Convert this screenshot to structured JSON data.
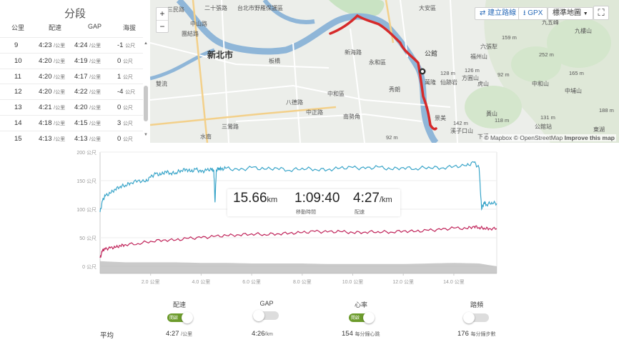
{
  "splits": {
    "title": "分段",
    "headers": [
      "公里",
      "配速",
      "GAP",
      "海拔"
    ],
    "rows": [
      {
        "km": "9",
        "pace": "4:23",
        "gap": "4:24",
        "elev": "-1",
        "pace_unit": "/公里",
        "elev_unit": "公尺"
      },
      {
        "km": "10",
        "pace": "4:20",
        "gap": "4:19",
        "elev": "0",
        "pace_unit": "/公里",
        "elev_unit": "公尺"
      },
      {
        "km": "11",
        "pace": "4:20",
        "gap": "4:17",
        "elev": "1",
        "pace_unit": "/公里",
        "elev_unit": "公尺"
      },
      {
        "km": "12",
        "pace": "4:20",
        "gap": "4:22",
        "elev": "-4",
        "pace_unit": "/公里",
        "elev_unit": "公尺"
      },
      {
        "km": "13",
        "pace": "4:21",
        "gap": "4:20",
        "elev": "0",
        "pace_unit": "/公里",
        "elev_unit": "公尺"
      },
      {
        "km": "14",
        "pace": "4:18",
        "gap": "4:15",
        "elev": "3",
        "pace_unit": "/公里",
        "elev_unit": "公尺"
      },
      {
        "km": "15",
        "pace": "4:13",
        "gap": "4:13",
        "elev": "0",
        "pace_unit": "/公里",
        "elev_unit": "公尺"
      }
    ]
  },
  "map": {
    "zoom_in": "+",
    "zoom_out": "−",
    "create_route": "建立路線",
    "gpx": "GPX",
    "map_type": "標準地圖",
    "fullscreen_icon": "expand-icon",
    "attribution_prefix": "© Mapbox",
    "attribution_osm": "© OpenStreetMap",
    "attribution_improve": "Improve this map",
    "labels": {
      "city": "新北市",
      "park": "台北市野雁保護區",
      "gongguan": "公館",
      "yonghe": "永和區",
      "zhonghe": "中和區",
      "jingmei": "景美",
      "wanlong": "萬隆",
      "sanying": "三鶯路",
      "nanshi": "南勢角",
      "zhongzheng": "中正路",
      "baqi": "八德路",
      "dadan": "大安區",
      "xiu": "秀朗",
      "shuangliu": "雙流",
      "banqiao": "板橋",
      "xiaonan": "下溪",
      "tuanjie": "團結路",
      "fuzhou": "福州山",
      "liuzhang": "六張犁",
      "xizikou": "溪子口山",
      "xinhai": "新海路",
      "zhongshan": "中山路",
      "sanmin": "三民路",
      "ershi": "二十張路",
      "jiujiu": "九五峰",
      "xianjun": "仙跡岩",
      "fangmei": "方圓山",
      "jiugui": "九樓山",
      "hongsha": "虎山",
      "zhongpu": "中埔山",
      "huangshan": "黃山",
      "zhonghu": "中和山",
      "banqiao2": "公館站",
      "shuinan": "水南",
      "dong": "東湖"
    },
    "elevations": [
      "159 m",
      "252 m",
      "128 m",
      "126 m",
      "92 m",
      "165 m",
      "118 m",
      "142 m",
      "131 m",
      "188 m",
      "92 m"
    ]
  },
  "chart_data": {
    "type": "line",
    "xlabel": "",
    "ylabel": "",
    "x_ticks": [
      "2.0 公里",
      "4.0 公里",
      "6.0 公里",
      "8.0 公里",
      "10.0 公里",
      "12.0 公里",
      "14.0 公里"
    ],
    "x_tick_values": [
      2,
      4,
      6,
      8,
      10,
      12,
      14
    ],
    "y_ticks": [
      "200 公尺",
      "150 公尺",
      "100 公尺",
      "50 公尺",
      "0 公尺"
    ],
    "y_tick_values": [
      200,
      150,
      100,
      50,
      0
    ],
    "xlim": [
      0,
      15.7
    ],
    "ylim": [
      0,
      200
    ],
    "series": [
      {
        "color": "#3aa5c9",
        "x": [
          0,
          0.1,
          0.2,
          0.4,
          0.6,
          0.8,
          1.0,
          1.2,
          1.5,
          1.8,
          2.0,
          2.2,
          2.4,
          2.6,
          2.8,
          3.0,
          3.2,
          3.4,
          3.6,
          3.8,
          4.0,
          4.2,
          4.4,
          4.5,
          4.55,
          4.6,
          4.7,
          4.8,
          5.0,
          5.5,
          6.0,
          6.5,
          7.0,
          7.5,
          8.0,
          8.5,
          9.0,
          9.5,
          10.0,
          10.5,
          11.0,
          11.5,
          12.0,
          12.5,
          13.0,
          13.5,
          14.0,
          14.5,
          14.8,
          15.0,
          15.1,
          15.2,
          15.3,
          15.5,
          15.7
        ],
        "values": [
          95,
          115,
          123,
          128,
          135,
          140,
          142,
          146,
          150,
          148,
          156,
          162,
          160,
          166,
          163,
          164,
          168,
          170,
          166,
          170,
          165,
          168,
          170,
          168,
          112,
          168,
          172,
          170,
          172,
          168,
          173,
          170,
          172,
          168,
          172,
          170,
          169,
          172,
          173,
          171,
          174,
          170,
          173,
          171,
          174,
          172,
          175,
          176,
          182,
          172,
          100,
          112,
          108,
          112,
          110
        ]
      },
      {
        "color": "#c0245a",
        "x": [
          0,
          0.1,
          0.2,
          0.4,
          0.6,
          0.8,
          1.0,
          1.5,
          2.0,
          2.5,
          3.0,
          3.5,
          4.0,
          4.5,
          5.0,
          5.5,
          6.0,
          6.5,
          7.0,
          7.5,
          8.0,
          8.5,
          9.0,
          9.5,
          10.0,
          10.5,
          11.0,
          11.5,
          12.0,
          12.5,
          13.0,
          13.5,
          14.0,
          14.5,
          14.8,
          15.0,
          15.2,
          15.4,
          15.7
        ],
        "values": [
          15,
          28,
          30,
          32,
          33,
          36,
          38,
          40,
          44,
          46,
          46,
          49,
          50,
          52,
          54,
          55,
          57,
          56,
          57,
          58,
          59,
          61,
          60,
          61,
          59,
          60,
          61,
          60,
          62,
          61,
          63,
          64,
          67,
          66,
          70,
          68,
          67,
          66,
          66
        ]
      },
      {
        "color": "#b8b8b8",
        "type": "area",
        "x": [
          0,
          1,
          2,
          3,
          4,
          5,
          6,
          7,
          8,
          9,
          10,
          11,
          12,
          13,
          14,
          15,
          15.7
        ],
        "values": [
          9,
          7,
          7,
          7,
          6,
          6,
          5,
          5,
          5,
          4,
          4,
          4,
          4,
          5,
          6,
          5,
          0
        ]
      }
    ]
  },
  "summary": {
    "distance_value": "15.66",
    "distance_unit": "km",
    "moving_time": "1:09:40",
    "moving_time_label": "移動時間",
    "pace_value": "4:27",
    "pace_unit": "/km",
    "pace_label": "配速"
  },
  "toggles": [
    {
      "label": "配速",
      "state": "on",
      "on_text": "開啟"
    },
    {
      "label": "GAP",
      "state": "off",
      "on_text": ""
    },
    {
      "label": "心率",
      "state": "on",
      "on_text": "開啟"
    },
    {
      "label": "踏頻",
      "state": "off",
      "on_text": ""
    }
  ],
  "averages": {
    "label": "平均",
    "pace": "4:27",
    "pace_unit": "/公里",
    "gap": "4:26",
    "gap_unit": "/km",
    "hr": "154",
    "hr_unit": "每分鐘心跳",
    "cadence": "176",
    "cadence_unit": "每分鐘步數"
  },
  "colors": {
    "route": "#d62a2a",
    "river": "#8fb6d8",
    "park": "#c9e3c3",
    "toggle_on": "#6c9b2c"
  }
}
